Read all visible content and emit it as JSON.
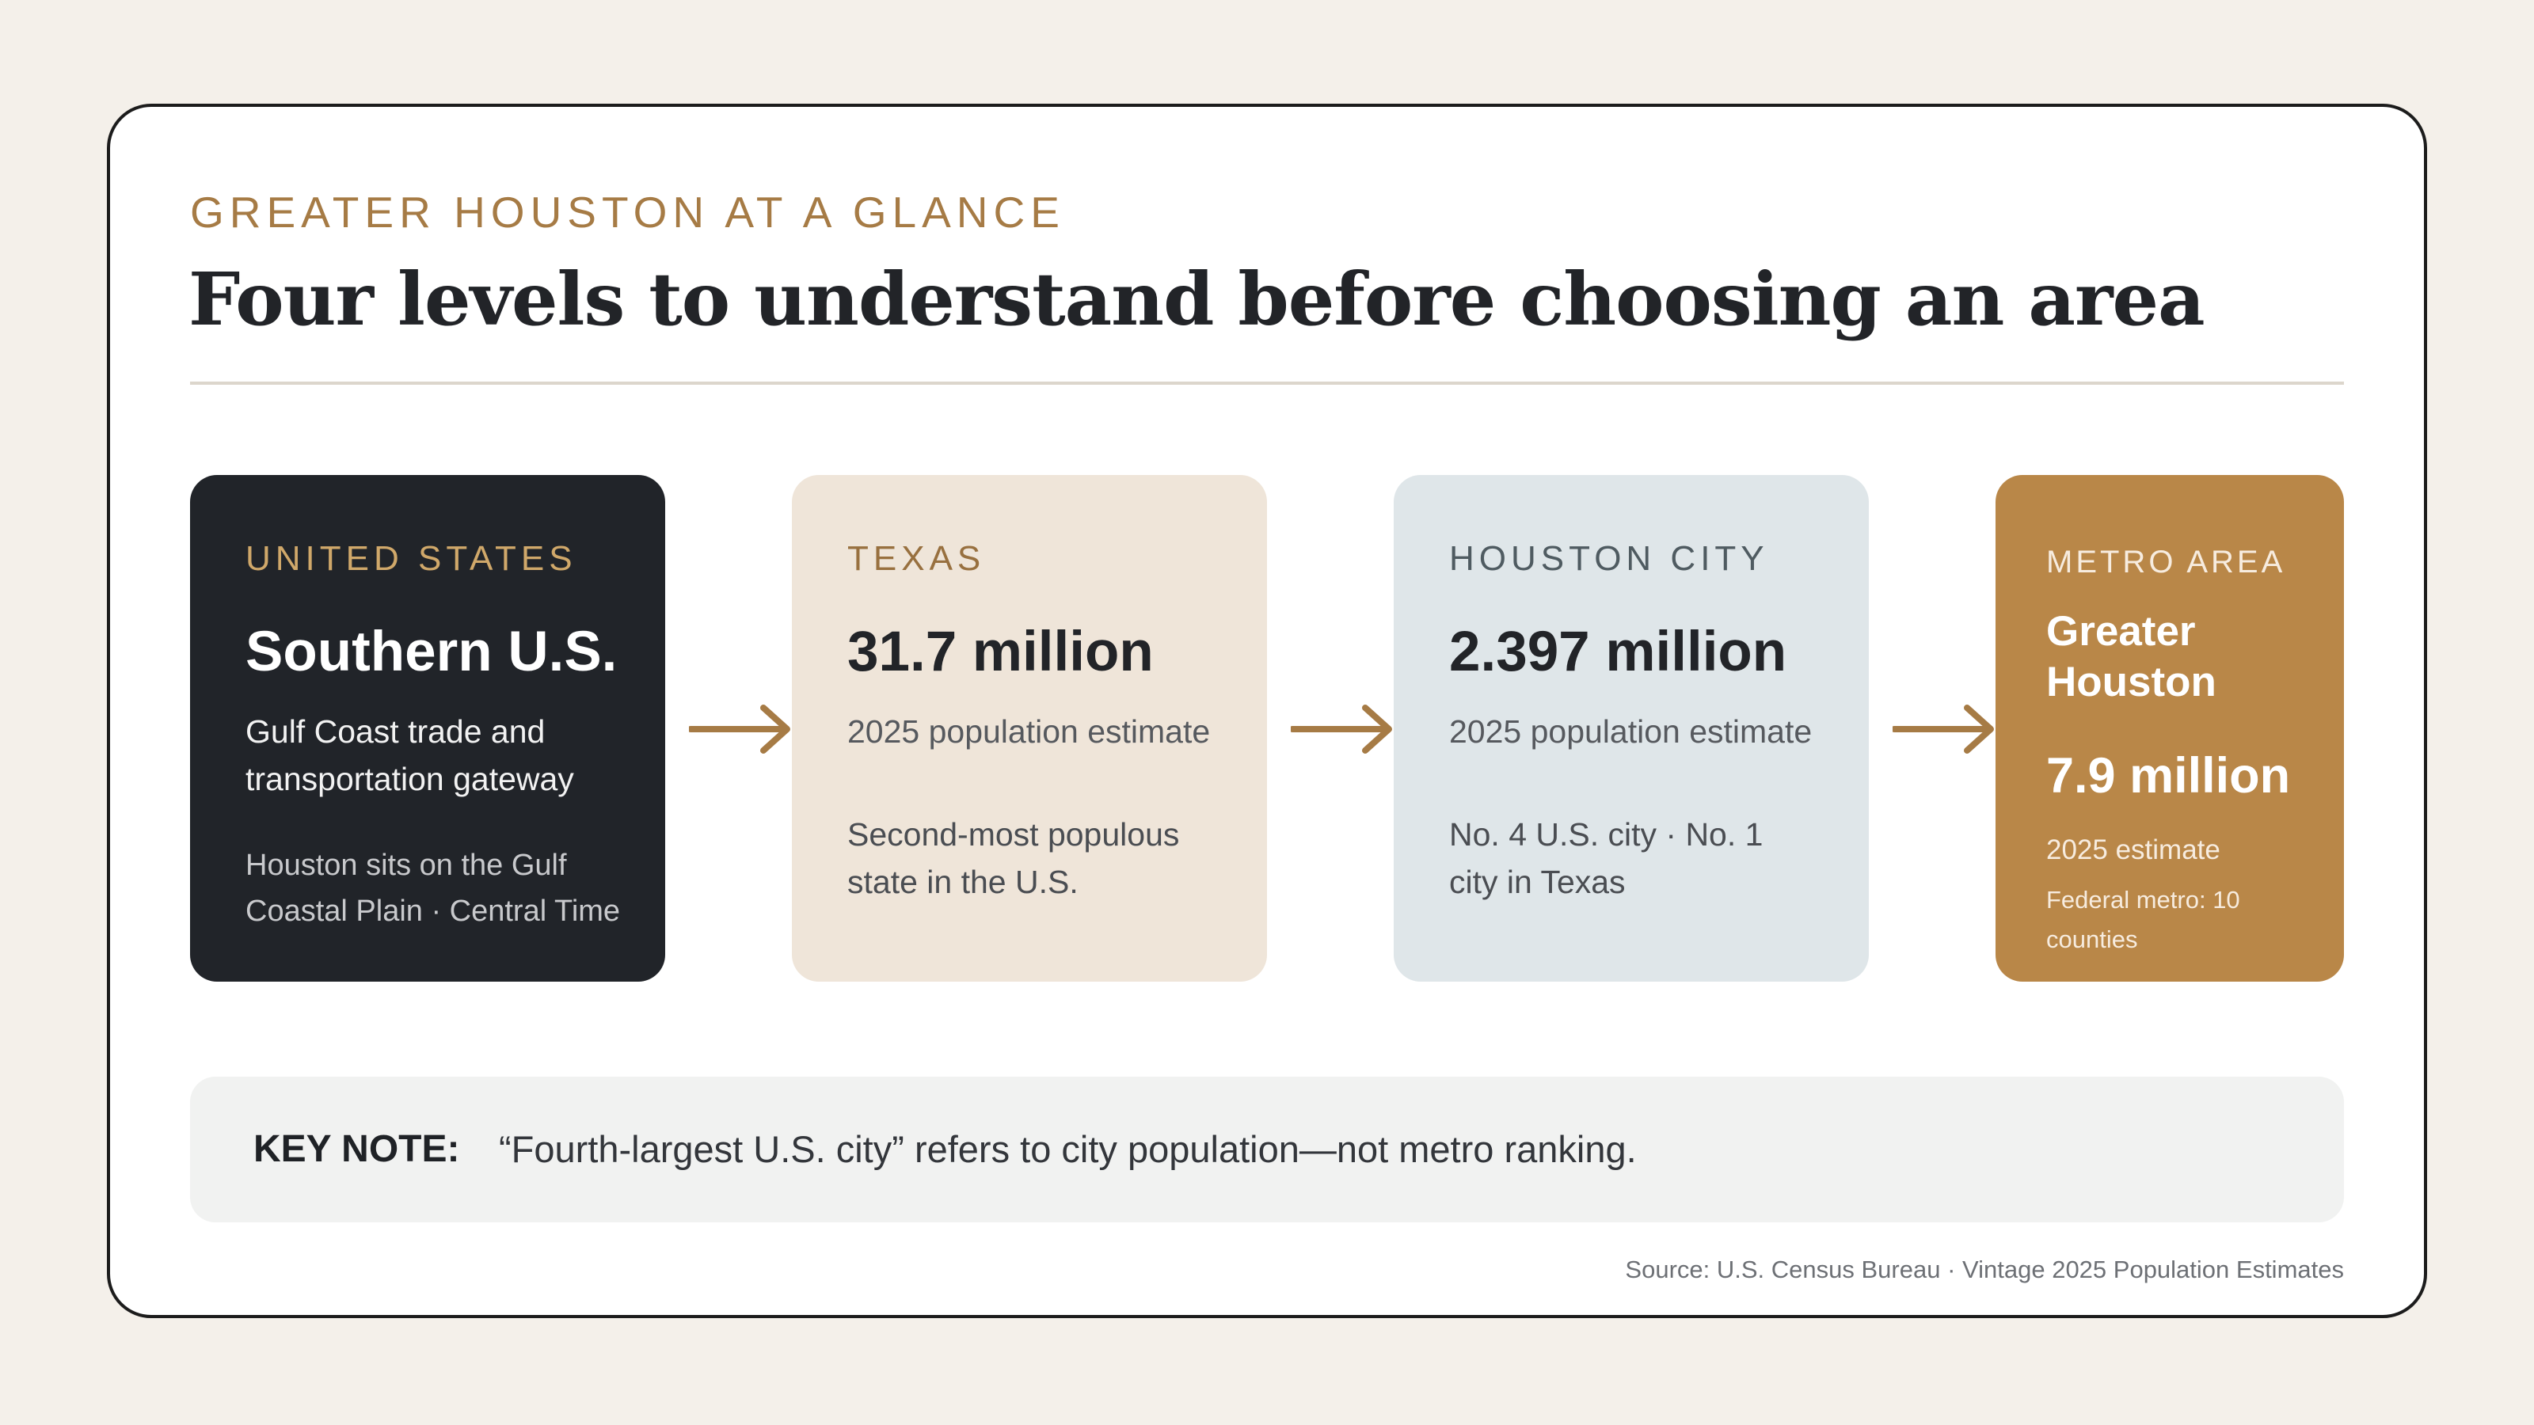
{
  "header": {
    "eyebrow": "GREATER HOUSTON AT A GLANCE",
    "title": "Four levels to understand before choosing an area"
  },
  "levels": [
    {
      "kicker": "UNITED STATES",
      "headline": "Southern U.S.",
      "description": "Gulf Coast trade and transportation gateway",
      "detail": "Houston sits on the Gulf Coastal Plain · Central Time"
    },
    {
      "kicker": "TEXAS",
      "headline": "31.7 million",
      "description": "2025 population estimate",
      "detail": "Second-most populous state in the U.S."
    },
    {
      "kicker": "HOUSTON CITY",
      "headline": "2.397 million",
      "description": "2025 population estimate",
      "detail": "No. 4 U.S. city · No. 1 city in Texas"
    },
    {
      "kicker": "METRO AREA",
      "name": "Greater Houston",
      "headline": "7.9 million",
      "description": "2025 estimate",
      "detail": "Federal metro: 10 counties"
    }
  ],
  "note": {
    "label": "KEY NOTE:",
    "text": "“Fourth-largest U.S. city” refers to city population—not metro ranking."
  },
  "source": "Source: U.S. Census Bureau · Vintage 2025 Population Estimates",
  "colors": {
    "accent": "#b98748",
    "dark": "#212429",
    "texas_bg": "#efe5d9",
    "city_bg": "#dfe6e9",
    "background": "#f4f0ea"
  }
}
